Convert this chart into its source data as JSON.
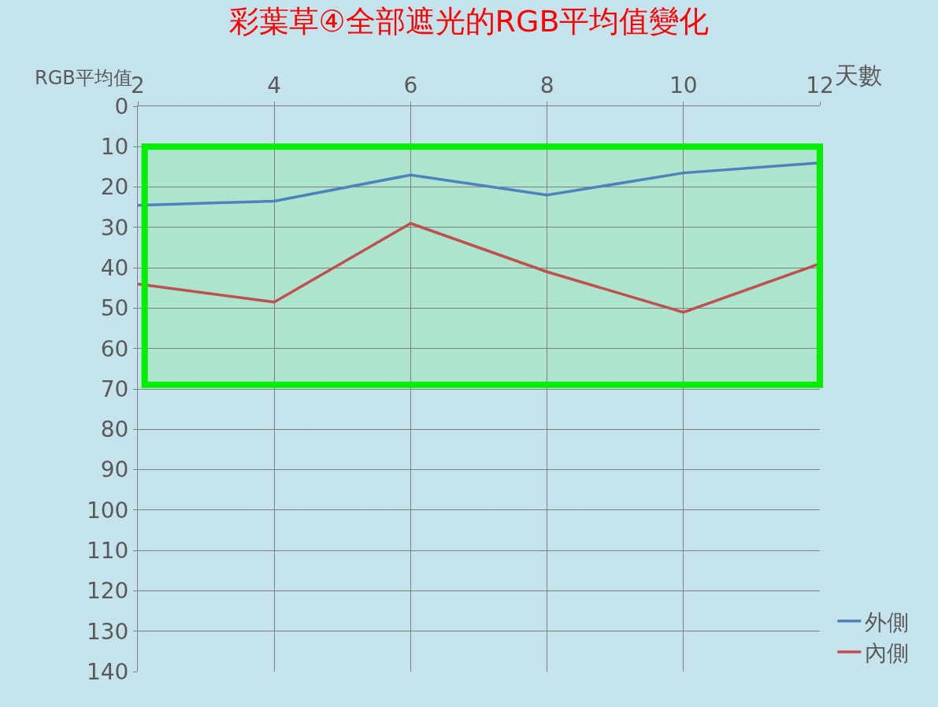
{
  "chart_data": {
    "type": "line",
    "title": "彩葉草④全部遮光的RGB平均值變化",
    "xlabel": "天數",
    "ylabel": "RGB平均值",
    "x": [
      2,
      4,
      6,
      8,
      10,
      12
    ],
    "series": [
      {
        "name": "外側",
        "color": "#4f81bd",
        "values": [
          24.5,
          23.5,
          17,
          22,
          16.5,
          14
        ]
      },
      {
        "name": "內側",
        "color": "#c0504d",
        "values": [
          44,
          48.5,
          29,
          41,
          51,
          39
        ]
      }
    ],
    "xlim": [
      2,
      12
    ],
    "xticks": [
      2,
      4,
      6,
      8,
      10,
      12
    ],
    "ylim": [
      140,
      0
    ],
    "yticks": [
      0,
      10,
      20,
      30,
      40,
      50,
      60,
      70,
      80,
      90,
      100,
      110,
      120,
      130,
      140
    ],
    "bands": [
      {
        "axis": "y",
        "from": 10,
        "to": 69,
        "color": "#00ee00"
      }
    ],
    "grid": true,
    "legend": "right",
    "marker": "none",
    "line_style": "solid"
  }
}
